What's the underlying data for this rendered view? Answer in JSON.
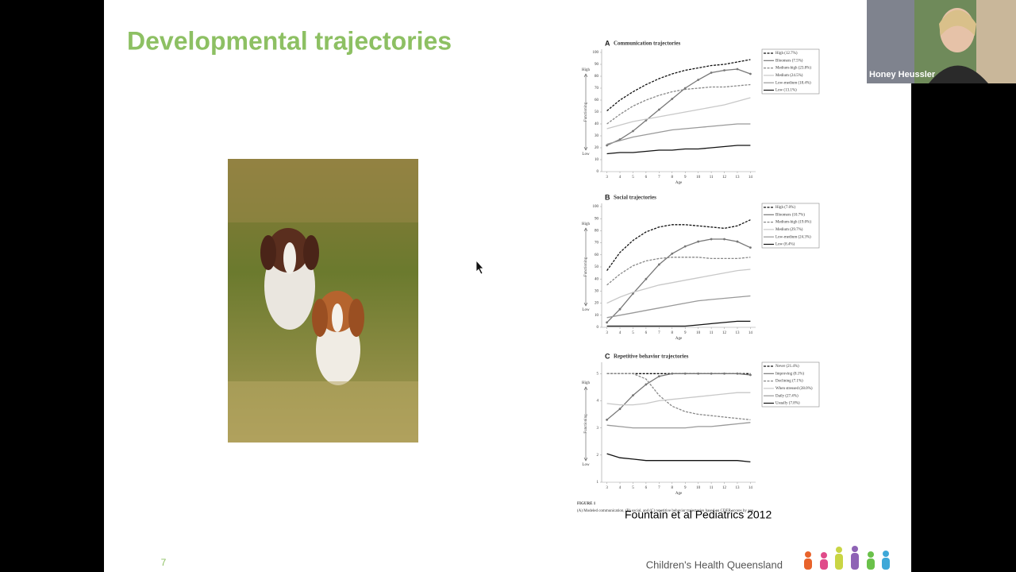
{
  "slide": {
    "title": "Developmental trajectories",
    "citation": "Fountain et al Pediatrics 2012",
    "page_number": "7",
    "footer_brand": "Children's Health Queensland",
    "figure_label": "FIGURE 1",
    "figure_caption": "(A) Modeled communication, (B) social, and (C) repetitive behavior trajectories based on CDER scores by age."
  },
  "video": {
    "participant_name": "Honey Heussler"
  },
  "chart_data": [
    {
      "type": "line",
      "label": "A",
      "title": "Communication trajectories",
      "xlabel": "Age",
      "ylabel": "Functioning",
      "annotations": [
        "High",
        "Low"
      ],
      "x": [
        3,
        4,
        5,
        6,
        7,
        8,
        9,
        10,
        11,
        12,
        13,
        14
      ],
      "xlim": [
        2.6,
        14.4
      ],
      "xticks": [
        3,
        4,
        5,
        6,
        7,
        8,
        9,
        10,
        11,
        12,
        13,
        14
      ],
      "ylim": [
        0,
        100
      ],
      "yticks": [
        0,
        10,
        20,
        30,
        40,
        50,
        60,
        70,
        80,
        90,
        100
      ],
      "legend": "right",
      "series": [
        {
          "name": "High (12.7%)",
          "color": "#111111",
          "style": "dashed",
          "markers": false,
          "values": [
            51,
            60,
            67,
            73,
            78,
            82,
            85,
            87,
            89,
            90,
            92,
            94
          ]
        },
        {
          "name": "Bloomers (7.5%)",
          "color": "#777777",
          "style": "solid",
          "markers": true,
          "values": [
            22,
            27,
            34,
            43,
            52,
            61,
            70,
            77,
            83,
            85,
            86,
            82
          ]
        },
        {
          "name": "Medium-high (23.8%)",
          "color": "#888888",
          "style": "dashed",
          "markers": false,
          "values": [
            40,
            48,
            55,
            60,
            64,
            67,
            69,
            70,
            71,
            71,
            72,
            73
          ]
        },
        {
          "name": "Medium (24.5%)",
          "color": "#c8c8c8",
          "style": "solid",
          "markers": false,
          "values": [
            36,
            39,
            42,
            44,
            46,
            48,
            50,
            52,
            54,
            56,
            59,
            62
          ]
        },
        {
          "name": "Low-medium (18.4%)",
          "color": "#999999",
          "style": "solid",
          "markers": false,
          "values": [
            23,
            26,
            29,
            31,
            33,
            35,
            36,
            37,
            38,
            39,
            40,
            40
          ]
        },
        {
          "name": "Low (13.1%)",
          "color": "#111111",
          "style": "solid",
          "markers": false,
          "values": [
            15,
            16,
            16,
            17,
            18,
            18,
            19,
            19,
            20,
            21,
            22,
            22
          ]
        }
      ]
    },
    {
      "type": "line",
      "label": "B",
      "title": "Social trajectories",
      "xlabel": "Age",
      "ylabel": "Functioning",
      "annotations": [
        "High",
        "Low"
      ],
      "x": [
        3,
        4,
        5,
        6,
        7,
        8,
        9,
        10,
        11,
        12,
        13,
        14
      ],
      "xlim": [
        2.6,
        14.4
      ],
      "xticks": [
        3,
        4,
        5,
        6,
        7,
        8,
        9,
        10,
        11,
        12,
        13,
        14
      ],
      "ylim": [
        0,
        100
      ],
      "yticks": [
        0,
        10,
        20,
        30,
        40,
        50,
        60,
        70,
        80,
        90,
        100
      ],
      "legend": "right",
      "series": [
        {
          "name": "High (7.0%)",
          "color": "#111111",
          "style": "dashed",
          "markers": false,
          "values": [
            47,
            62,
            72,
            79,
            83,
            85,
            85,
            84,
            83,
            82,
            84,
            89
          ]
        },
        {
          "name": "Bloomers (10.7%)",
          "color": "#777777",
          "style": "solid",
          "markers": true,
          "values": [
            4,
            15,
            28,
            40,
            52,
            61,
            67,
            71,
            73,
            73,
            71,
            66
          ]
        },
        {
          "name": "Medium-high (19.0%)",
          "color": "#888888",
          "style": "dashed",
          "markers": false,
          "values": [
            35,
            44,
            51,
            55,
            57,
            58,
            58,
            58,
            57,
            57,
            57,
            58
          ]
        },
        {
          "name": "Medium (29.7%)",
          "color": "#c8c8c8",
          "style": "solid",
          "markers": false,
          "values": [
            20,
            25,
            29,
            32,
            35,
            37,
            39,
            41,
            43,
            45,
            47,
            48
          ]
        },
        {
          "name": "Low-medium (24.3%)",
          "color": "#999999",
          "style": "solid",
          "markers": false,
          "values": [
            8,
            10,
            12,
            14,
            16,
            18,
            20,
            22,
            23,
            24,
            25,
            26
          ]
        },
        {
          "name": "Low (8.4%)",
          "color": "#111111",
          "style": "solid",
          "markers": false,
          "values": [
            1,
            1,
            1,
            1,
            1,
            1,
            1,
            2,
            3,
            4,
            5,
            5
          ]
        }
      ]
    },
    {
      "type": "line",
      "label": "C",
      "title": "Repetitive behavior trajectories",
      "xlabel": "Age",
      "ylabel": "Functioning",
      "annotations": [
        "High",
        "Low"
      ],
      "x": [
        3,
        4,
        5,
        6,
        7,
        8,
        9,
        10,
        11,
        12,
        13,
        14
      ],
      "xlim": [
        2.6,
        14.4
      ],
      "xticks": [
        3,
        4,
        5,
        6,
        7,
        8,
        9,
        10,
        11,
        12,
        13,
        14
      ],
      "ylim": [
        1,
        5.3
      ],
      "yticks": [
        1,
        2,
        3,
        4,
        5
      ],
      "legend": "right",
      "series": [
        {
          "name": "Never (21.4%)",
          "color": "#111111",
          "style": "dashed",
          "markers": false,
          "values": [
            5,
            5,
            5,
            5,
            5,
            5,
            5,
            5,
            5,
            5,
            5,
            5
          ]
        },
        {
          "name": "Improving (8.1%)",
          "color": "#777777",
          "style": "solid",
          "markers": true,
          "values": [
            3.3,
            3.7,
            4.2,
            4.6,
            4.9,
            5,
            5,
            5,
            5,
            5,
            5,
            4.95
          ]
        },
        {
          "name": "Declining (7.1%)",
          "color": "#888888",
          "style": "dashed",
          "markers": false,
          "values": [
            5,
            5,
            5,
            4.8,
            4.2,
            3.8,
            3.6,
            3.5,
            3.45,
            3.4,
            3.35,
            3.3
          ]
        },
        {
          "name": "When stressed (28.0%)",
          "color": "#c8c8c8",
          "style": "solid",
          "markers": false,
          "values": [
            3.9,
            3.85,
            3.85,
            3.9,
            4,
            4.05,
            4.1,
            4.15,
            4.2,
            4.25,
            4.3,
            4.3
          ]
        },
        {
          "name": "Daily (27.4%)",
          "color": "#999999",
          "style": "solid",
          "markers": false,
          "values": [
            3.1,
            3.05,
            3,
            3,
            3,
            3,
            3,
            3.05,
            3.05,
            3.1,
            3.15,
            3.2
          ]
        },
        {
          "name": "Usually (7.8%)",
          "color": "#111111",
          "style": "solid",
          "markers": false,
          "values": [
            2.05,
            1.9,
            1.85,
            1.8,
            1.8,
            1.8,
            1.8,
            1.8,
            1.8,
            1.8,
            1.8,
            1.75
          ]
        }
      ]
    }
  ]
}
